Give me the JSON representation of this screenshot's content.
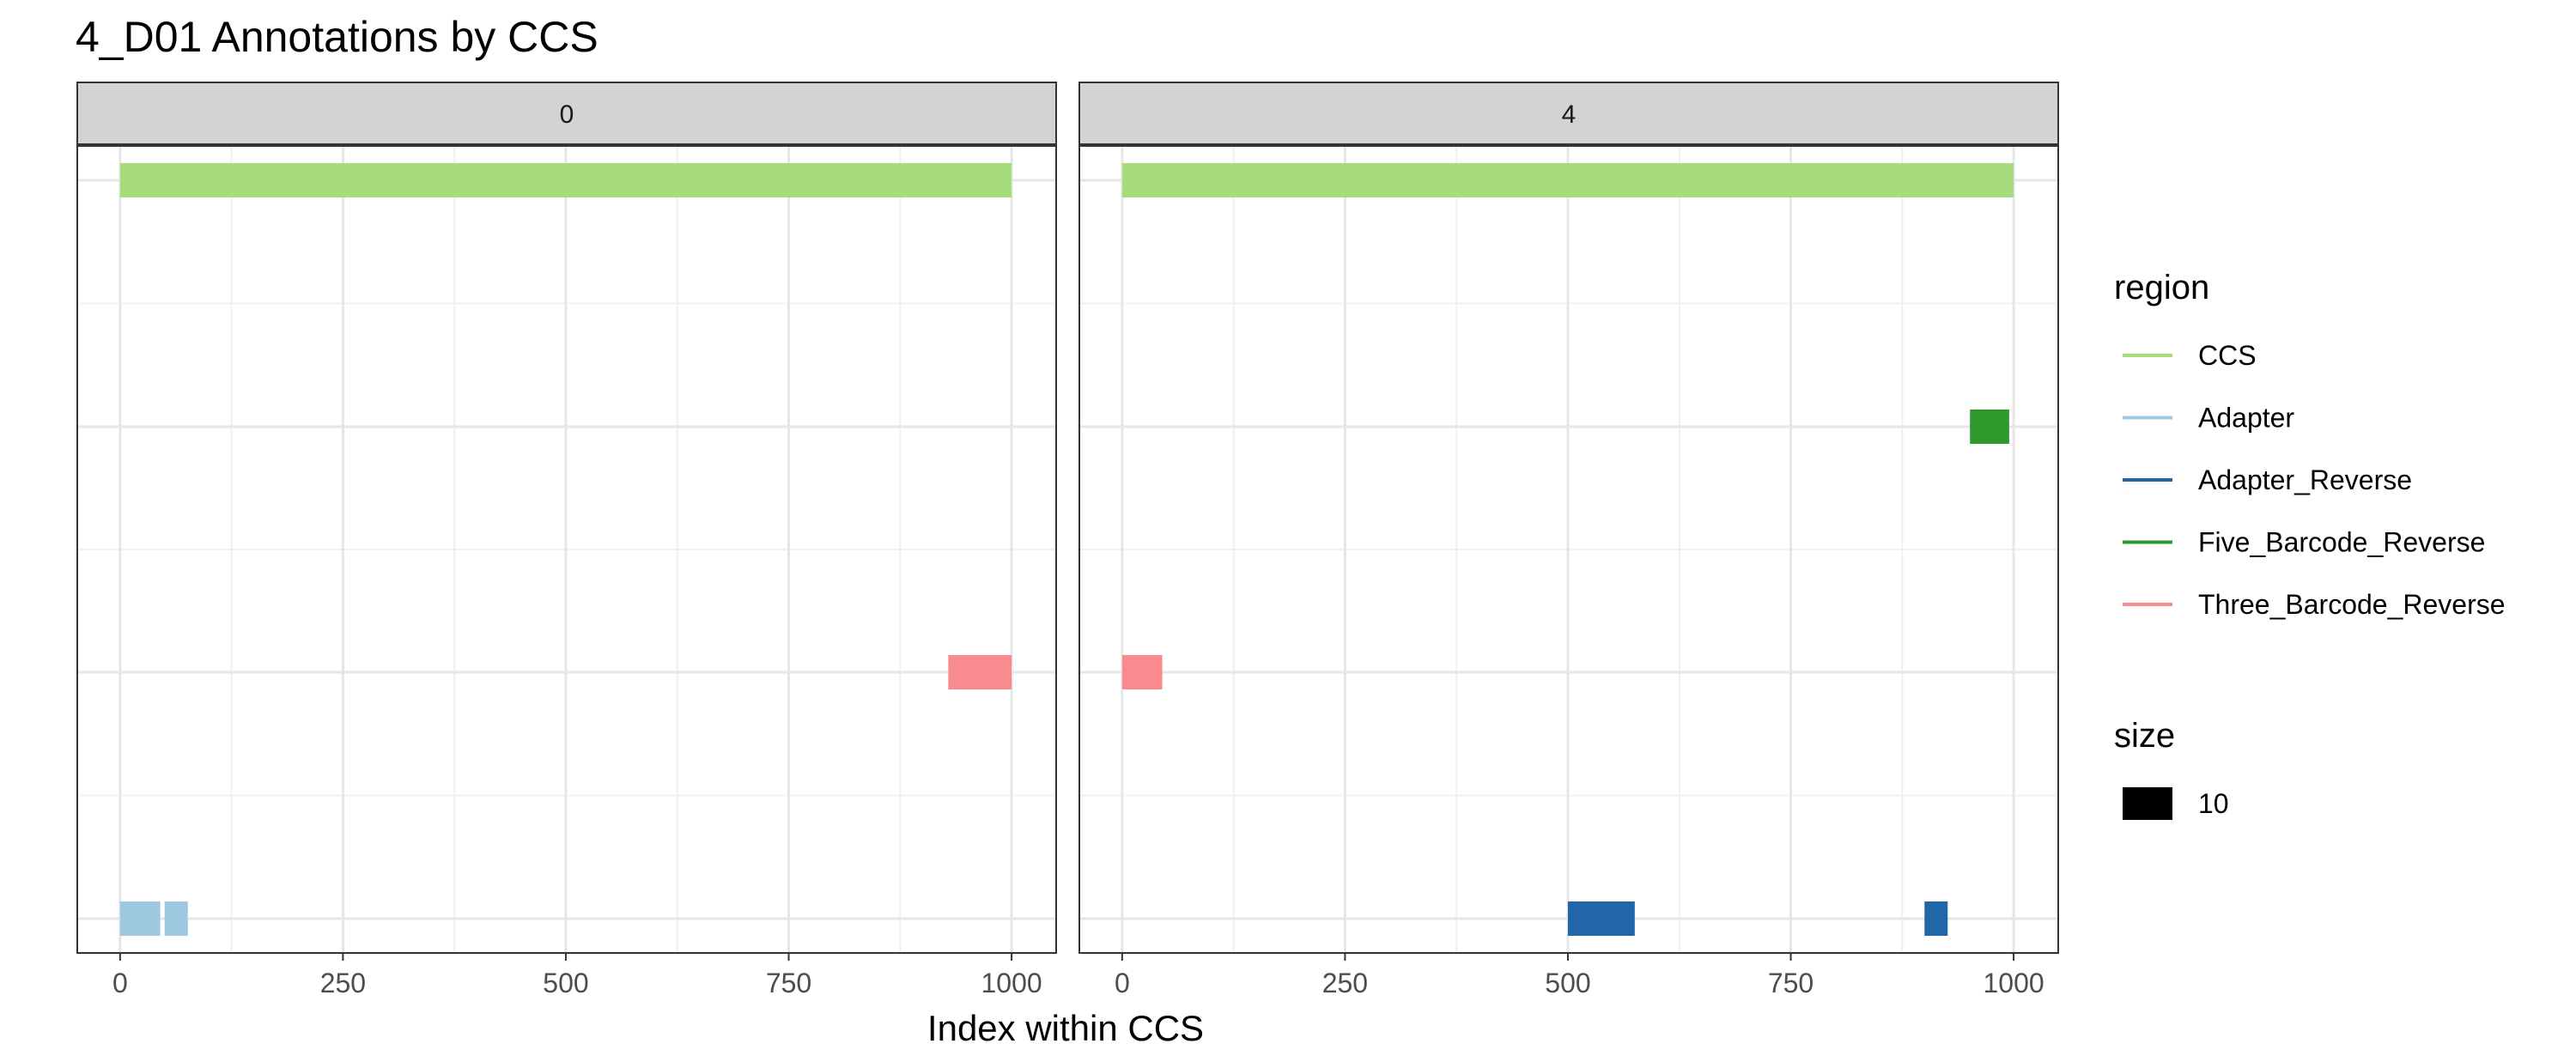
{
  "chart_data": {
    "type": "bar",
    "title": "4_D01 Annotations by CCS",
    "xlabel": "Index within CCS",
    "ylabel": "",
    "xlim": [
      -48,
      1050
    ],
    "xticks": [
      "0",
      "250",
      "500",
      "750",
      "1000"
    ],
    "grid": true,
    "legend_placement": "right",
    "regions": [
      "CCS",
      "Adapter",
      "Adapter_Reverse",
      "Five_Barcode_Reverse",
      "Three_Barcode_Reverse"
    ],
    "colors": {
      "CCS": "#a6dc7b",
      "Adapter": "#9dc8e0",
      "Adapter_Reverse": "#2167a8",
      "Five_Barcode_Reverse": "#2e9a2e",
      "Three_Barcode_Reverse": "#f98b8f"
    },
    "panels": [
      {
        "label": "0",
        "segments": [
          {
            "region": "CCS",
            "row": 0,
            "start": 0,
            "end": 1000
          },
          {
            "region": "Three_Barcode_Reverse",
            "row": 2,
            "start": 929,
            "end": 1000
          },
          {
            "region": "Adapter",
            "row": 3,
            "start": 0,
            "end": 45
          },
          {
            "region": "Adapter",
            "row": 3,
            "start": 50,
            "end": 76
          }
        ]
      },
      {
        "label": "4",
        "segments": [
          {
            "region": "CCS",
            "row": 0,
            "start": 0,
            "end": 1000
          },
          {
            "region": "Five_Barcode_Reverse",
            "row": 1,
            "start": 951,
            "end": 995
          },
          {
            "region": "Three_Barcode_Reverse",
            "row": 2,
            "start": 0,
            "end": 45
          },
          {
            "region": "Adapter_Reverse",
            "row": 3,
            "start": 500,
            "end": 575
          },
          {
            "region": "Adapter_Reverse",
            "row": 3,
            "start": 900,
            "end": 926
          }
        ]
      }
    ],
    "legend": {
      "color_title": "region",
      "color_entries": [
        "CCS",
        "Adapter",
        "Adapter_Reverse",
        "Five_Barcode_Reverse",
        "Three_Barcode_Reverse"
      ],
      "size_title": "size",
      "size_entries": [
        "10"
      ]
    }
  }
}
